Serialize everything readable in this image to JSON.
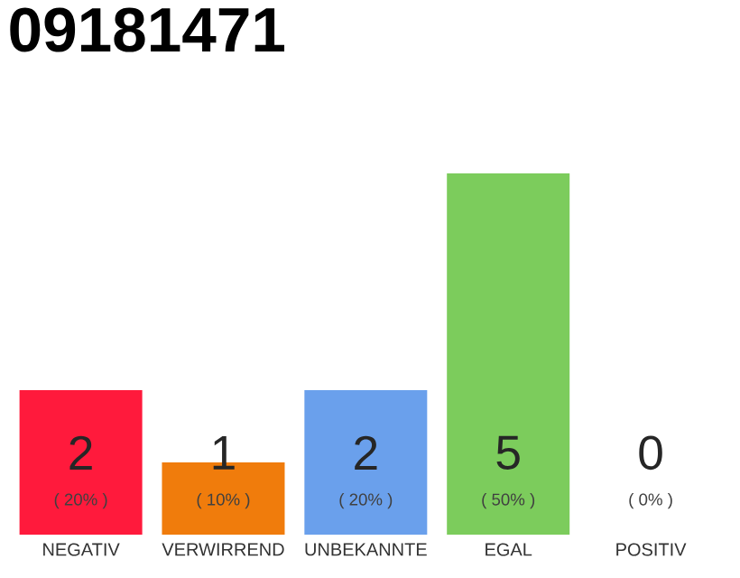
{
  "chart_data": {
    "type": "bar",
    "title": "09181471",
    "categories": [
      "NEGATIV",
      "VERWIRREND",
      "UNBEKANNTE",
      "EGAL",
      "POSITIV"
    ],
    "values": [
      20,
      10,
      20,
      50,
      0
    ],
    "colors": [
      "#ff1a3c",
      "#f07c0c",
      "#6aa0ec",
      "#7ccc5c",
      "#d0d0d0"
    ],
    "value_labels": [
      "( 20% )",
      "( 10% )",
      "( 20% )",
      "( 50% )",
      "( 0% )"
    ],
    "annotations": [
      "2",
      "1",
      "2",
      "5",
      "0"
    ],
    "tick_labels": "x"
  }
}
